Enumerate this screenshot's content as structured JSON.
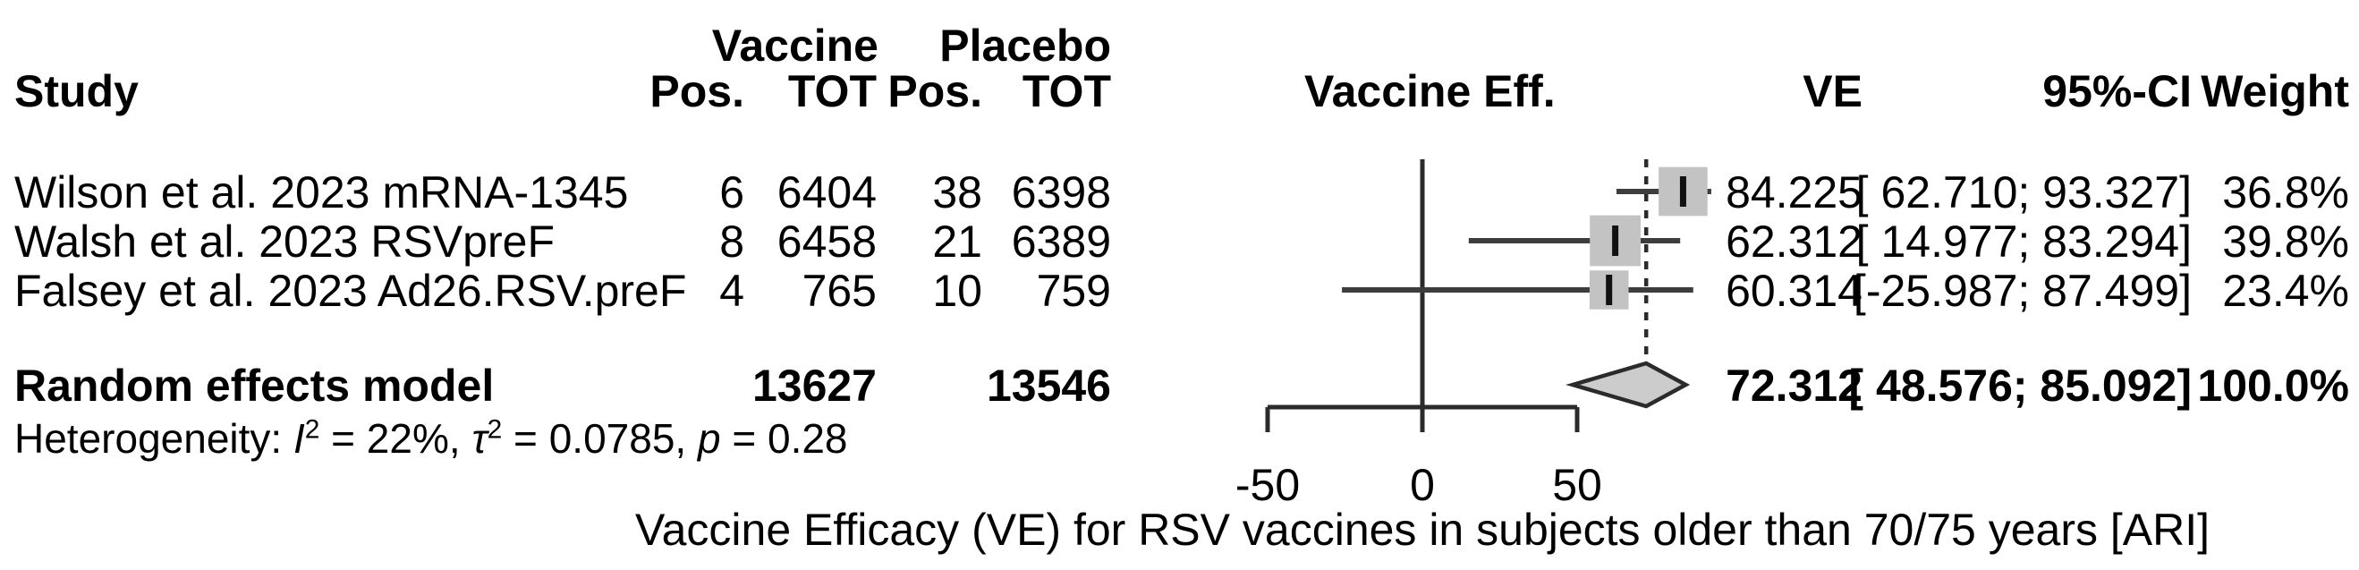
{
  "table": {
    "header": {
      "study": "Study",
      "vaccine_group": "Vaccine",
      "placebo_group": "Placebo",
      "vac_pos": "Pos.",
      "vac_tot": "TOT",
      "pla_pos": "Pos.",
      "pla_tot": "TOT",
      "vaccine_eff": "Vaccine Eff.",
      "ve": "VE",
      "ci": "95%-CI",
      "weight": "Weight"
    },
    "rows": [
      {
        "study": "Wilson et al. 2023 mRNA-1345",
        "vac_pos": "6",
        "vac_tot": "6404",
        "pla_pos": "38",
        "pla_tot": "6398",
        "ve": "84.225",
        "ci": "[ 62.710; 93.327]",
        "weight": "36.8%"
      },
      {
        "study": "Walsh et al. 2023 RSVpreF",
        "vac_pos": "8",
        "vac_tot": "6458",
        "pla_pos": "21",
        "pla_tot": "6389",
        "ve": "62.312",
        "ci": "[ 14.977; 83.294]",
        "weight": "39.8%"
      },
      {
        "study": "Falsey et al. 2023 Ad26.RSV.preF",
        "vac_pos": "4",
        "vac_tot": "765",
        "pla_pos": "10",
        "pla_tot": "759",
        "ve": "60.314",
        "ci": "[-25.987; 87.499]",
        "weight": "23.4%"
      }
    ],
    "summary": {
      "label": "Random effects model",
      "vac_tot": "13627",
      "pla_tot": "13546",
      "ve": "72.312",
      "ci": "[ 48.576; 85.092]",
      "weight": "100.0%"
    },
    "heterogeneity": {
      "prefix": "Heterogeneity: ",
      "i_label": "I",
      "i_sup": "2",
      "i_value": " = 22%, ",
      "tau_label": "τ",
      "tau_sup": "2",
      "tau_value": " = 0.0785, ",
      "p_label": "p",
      "p_value": " = 0.28"
    }
  },
  "axis": {
    "ticks": [
      "-50",
      "0",
      "50"
    ]
  },
  "caption": "Vaccine Efficacy (VE) for RSV vaccines in subjects older than 70/75 years [ARI]",
  "colors": {
    "square": "#c3c3c3",
    "diamond_fill": "#cccccc",
    "line": "#2b2b2b"
  },
  "chart_data": {
    "type": "forest",
    "xlabel": "Vaccine Efficacy (VE) for RSV vaccines in subjects older than 70/75 years [ARI]",
    "x_ticks": [
      -50,
      0,
      50
    ],
    "axis_range": [
      -50,
      50
    ],
    "zero_line_x": 0,
    "pooled_dashed_line_x": 72.312,
    "studies": [
      {
        "name": "Wilson et al. 2023 mRNA-1345",
        "vaccine_pos": 6,
        "vaccine_tot": 6404,
        "placebo_pos": 38,
        "placebo_tot": 6398,
        "estimate": 84.225,
        "ci_low": 62.71,
        "ci_high": 93.327,
        "weight_pct": 36.8
      },
      {
        "name": "Walsh et al. 2023 RSVpreF",
        "vaccine_pos": 8,
        "vaccine_tot": 6458,
        "placebo_pos": 21,
        "placebo_tot": 6389,
        "estimate": 62.312,
        "ci_low": 14.977,
        "ci_high": 83.294,
        "weight_pct": 39.8
      },
      {
        "name": "Falsey et al. 2023 Ad26.RSV.preF",
        "vaccine_pos": 4,
        "vaccine_tot": 765,
        "placebo_pos": 10,
        "placebo_tot": 759,
        "estimate": 60.314,
        "ci_low": -25.987,
        "ci_high": 87.499,
        "weight_pct": 23.4
      }
    ],
    "summary": {
      "name": "Random effects model",
      "vaccine_tot": 13627,
      "placebo_tot": 13546,
      "estimate": 72.312,
      "ci_low": 48.576,
      "ci_high": 85.092,
      "weight_pct": 100.0
    },
    "heterogeneity": {
      "I2": "22%",
      "tau2": 0.0785,
      "p": 0.28
    }
  }
}
